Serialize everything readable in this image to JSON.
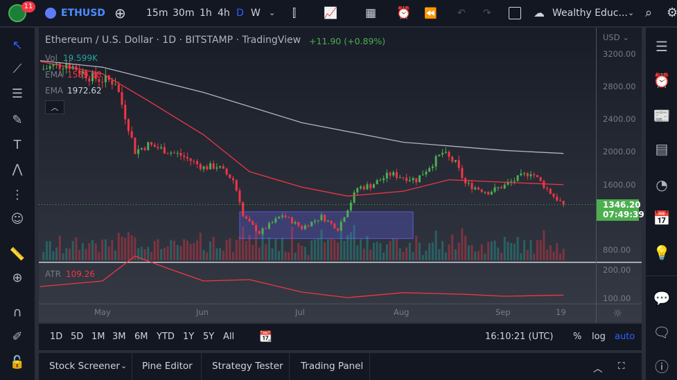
{
  "topbar": {
    "notifications": "11",
    "symbol": "ETHUSD",
    "intervals": [
      "15m",
      "30m",
      "1h",
      "4h",
      "D",
      "W"
    ],
    "active_interval": "D",
    "account": "Wealthy Educ..."
  },
  "legend": {
    "title": "Ethereum / U.S. Dollar · 1D · BITSTAMP · TradingView",
    "change": "+11.90 (+0.89%)",
    "vol_label": "Vol",
    "vol_value": "19.599K",
    "ema1_label": "EMA",
    "ema1_value": "1589.58",
    "ema2_label": "EMA",
    "ema2_value": "1972.62",
    "atr_label": "ATR",
    "atr_value": "109.26"
  },
  "price_axis": {
    "currency": "USD",
    "ticks": [
      "3200.00",
      "2800.00",
      "2400.00",
      "2000.00",
      "1600.00",
      "800.00"
    ],
    "atr_ticks": [
      "200.00",
      "100.00"
    ],
    "last_price": "1346.20",
    "countdown": "07:49:39"
  },
  "time_axis": [
    "May",
    "Jun",
    "Jul",
    "Aug",
    "Sep",
    "19"
  ],
  "colors": {
    "up": "#26a69a",
    "down": "#f23645",
    "candle_up": "#4caf50",
    "ema_fast": "#f23645",
    "ema_slow": "#b2b5be",
    "price_label": "#4caf50",
    "box": "#5b5bd6"
  },
  "series": {
    "closes": [
      [
        "2022-04-12",
        3000
      ],
      [
        "2022-04-20",
        3080
      ],
      [
        "2022-04-28",
        2900
      ],
      [
        "2022-05-05",
        2850
      ],
      [
        "2022-05-09",
        2300
      ],
      [
        "2022-05-11",
        2000
      ],
      [
        "2022-05-15",
        2080
      ],
      [
        "2022-05-25",
        1950
      ],
      [
        "2022-06-01",
        1800
      ],
      [
        "2022-06-05",
        1820
      ],
      [
        "2022-06-10",
        1650
      ],
      [
        "2022-06-12",
        1400
      ],
      [
        "2022-06-13",
        1200
      ],
      [
        "2022-06-18",
        1000
      ],
      [
        "2022-06-25",
        1220
      ],
      [
        "2022-07-01",
        1060
      ],
      [
        "2022-07-07",
        1200
      ],
      [
        "2022-07-12",
        1050
      ],
      [
        "2022-07-18",
        1550
      ],
      [
        "2022-07-22",
        1580
      ],
      [
        "2022-07-28",
        1720
      ],
      [
        "2022-08-05",
        1650
      ],
      [
        "2022-08-13",
        1980
      ],
      [
        "2022-08-17",
        1850
      ],
      [
        "2022-08-20",
        1600
      ],
      [
        "2022-08-27",
        1500
      ],
      [
        "2022-09-01",
        1580
      ],
      [
        "2022-09-09",
        1750
      ],
      [
        "2022-09-13",
        1580
      ],
      [
        "2022-09-16",
        1450
      ],
      [
        "2022-09-19",
        1346.2
      ]
    ],
    "ema_fast": [
      [
        "2022-04-12",
        3100
      ],
      [
        "2022-05-01",
        2950
      ],
      [
        "2022-05-15",
        2620
      ],
      [
        "2022-06-01",
        2200
      ],
      [
        "2022-06-15",
        1750
      ],
      [
        "2022-07-01",
        1560
      ],
      [
        "2022-07-15",
        1450
      ],
      [
        "2022-08-01",
        1510
      ],
      [
        "2022-08-15",
        1650
      ],
      [
        "2022-09-01",
        1620
      ],
      [
        "2022-09-19",
        1589.58
      ]
    ],
    "ema_slow": [
      [
        "2022-04-12",
        3110
      ],
      [
        "2022-05-01",
        3030
      ],
      [
        "2022-06-01",
        2720
      ],
      [
        "2022-07-01",
        2350
      ],
      [
        "2022-08-01",
        2110
      ],
      [
        "2022-09-01",
        2010
      ],
      [
        "2022-09-19",
        1972.62
      ]
    ],
    "atr": [
      [
        "2022-04-12",
        140
      ],
      [
        "2022-05-01",
        160
      ],
      [
        "2022-05-11",
        250
      ],
      [
        "2022-05-20",
        210
      ],
      [
        "2022-06-01",
        160
      ],
      [
        "2022-06-15",
        165
      ],
      [
        "2022-07-01",
        120
      ],
      [
        "2022-07-15",
        100
      ],
      [
        "2022-08-01",
        118
      ],
      [
        "2022-08-20",
        112
      ],
      [
        "2022-09-01",
        105
      ],
      [
        "2022-09-19",
        109.26
      ]
    ],
    "range_box": {
      "from": "2022-06-12",
      "to": "2022-08-04",
      "high": 1258,
      "low": 930
    }
  },
  "ranges": [
    "1D",
    "5D",
    "1M",
    "3M",
    "6M",
    "YTD",
    "1Y",
    "5Y",
    "All"
  ],
  "clock": "16:10:21 (UTC)",
  "scale_opts": [
    "%",
    "log",
    "auto"
  ],
  "bottom_tabs": [
    "Stock Screener",
    "Pine Editor",
    "Strategy Tester",
    "Trading Panel"
  ]
}
